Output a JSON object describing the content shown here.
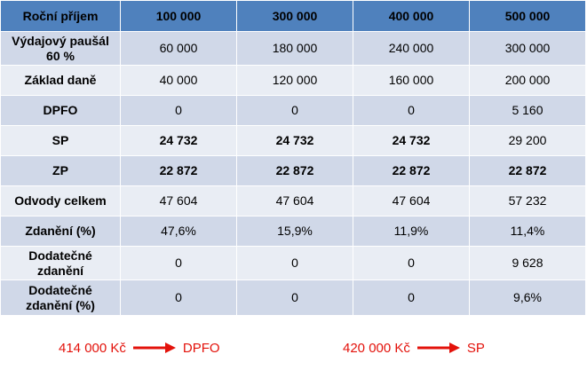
{
  "table": {
    "header": [
      "Roční příjem",
      "100 000",
      "300 000",
      "400 000",
      "500 000"
    ],
    "rows": [
      {
        "label": "Výdajový paušál 60 %",
        "values": [
          "60 000",
          "180 000",
          "240 000",
          "300 000"
        ],
        "green": [
          false,
          false,
          false,
          false
        ]
      },
      {
        "label": "Základ daně",
        "values": [
          "40 000",
          "120 000",
          "160 000",
          "200 000"
        ],
        "green": [
          false,
          false,
          false,
          false
        ]
      },
      {
        "label": "DPFO",
        "values": [
          "0",
          "0",
          "0",
          "5 160"
        ],
        "green": [
          false,
          false,
          false,
          false
        ]
      },
      {
        "label": "SP",
        "values": [
          "24 732",
          "24 732",
          "24 732",
          "29 200"
        ],
        "green": [
          true,
          true,
          true,
          false
        ]
      },
      {
        "label": "ZP",
        "values": [
          "22 872",
          "22 872",
          "22 872",
          "22 872"
        ],
        "green": [
          true,
          true,
          true,
          true
        ]
      },
      {
        "label": "Odvody celkem",
        "values": [
          "47 604",
          "47 604",
          "47 604",
          "57 232"
        ],
        "green": [
          false,
          false,
          false,
          false
        ]
      },
      {
        "label": "Zdanění (%)",
        "values": [
          "47,6%",
          "15,9%",
          "11,9%",
          "11,4%"
        ],
        "green": [
          false,
          false,
          false,
          false
        ]
      },
      {
        "label": "Dodatečné zdanění",
        "values": [
          "0",
          "0",
          "0",
          "9 628"
        ],
        "green": [
          false,
          false,
          false,
          false
        ]
      },
      {
        "label": "Dodatečné zdanění (%)",
        "values": [
          "0",
          "0",
          "0",
          "9,6%"
        ],
        "green": [
          false,
          false,
          false,
          false
        ]
      }
    ]
  },
  "thresholds": [
    {
      "amount": "414 000 Kč",
      "target": "DPFO"
    },
    {
      "amount": "420 000 Kč",
      "target": "SP"
    }
  ],
  "colors": {
    "header_bg": "#4f81bd",
    "row_dark": "#d0d8e8",
    "row_light": "#e9edf4",
    "highlight": "#00b050",
    "arrow": "#e3120b"
  }
}
